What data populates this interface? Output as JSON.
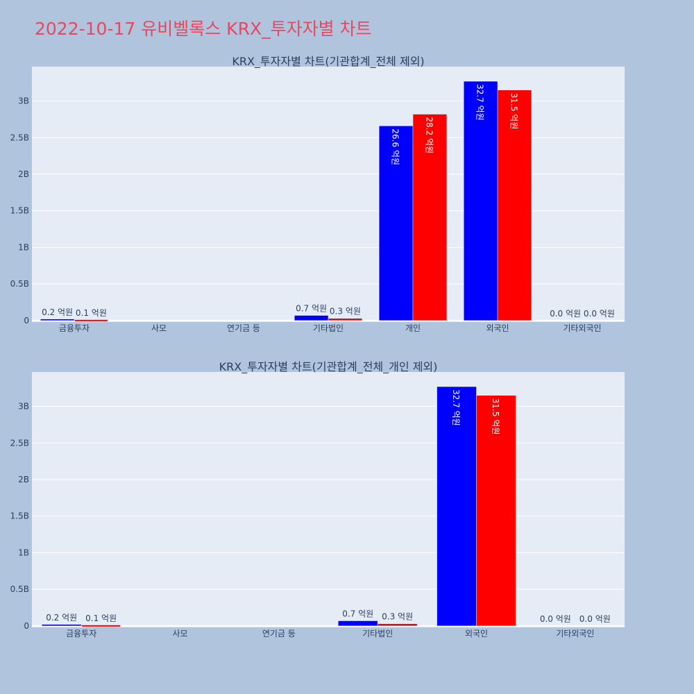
{
  "title": "2022-10-17 유비벨록스 KRX_투자자별 차트",
  "colors": {
    "background": "#b0c4de",
    "plot_bg": "#e5ecf6",
    "title": "#e8475f",
    "text": "#2a3f5f",
    "grid": "#ffffff",
    "series_a": "#0000ff",
    "series_b": "#ff0000"
  },
  "chart_data": [
    {
      "type": "bar",
      "title": "KRX_투자자별 차트(기관합계_전체 제외)",
      "categories": [
        "금융투자",
        "사모",
        "연기금 등",
        "기타법인",
        "개인",
        "외국인",
        "기타외국인"
      ],
      "series": [
        {
          "values": [
            20000000,
            0,
            0,
            70000000,
            2660000000,
            3270000000,
            0
          ],
          "labels": [
            "0.2 억원",
            "",
            "",
            "0.7 억원",
            "26.6 억원",
            "32.7 억원",
            "0.0 억원"
          ]
        },
        {
          "values": [
            10000000,
            0,
            0,
            30000000,
            2820000000,
            3150000000,
            0
          ],
          "labels": [
            "0.1 억원",
            "",
            "",
            "0.3 억원",
            "28.2 억원",
            "31.5 억원",
            "0.0 억원"
          ]
        }
      ],
      "ylim": [
        -20000000,
        3470000000
      ],
      "yticks": [
        0,
        500000000,
        1000000000,
        1500000000,
        2000000000,
        2500000000,
        3000000000
      ],
      "ytick_labels": [
        "0",
        "0.5B",
        "1B",
        "1.5B",
        "2B",
        "2.5B",
        "3B"
      ],
      "grid": true
    },
    {
      "type": "bar",
      "title": "KRX_투자자별 차트(기관합계_전체_개인 제외)",
      "categories": [
        "금융투자",
        "사모",
        "연기금 등",
        "기타법인",
        "외국인",
        "기타외국인"
      ],
      "series": [
        {
          "values": [
            20000000,
            0,
            0,
            70000000,
            3270000000,
            0
          ],
          "labels": [
            "0.2 억원",
            "",
            "",
            "0.7 억원",
            "32.7 억원",
            "0.0 억원"
          ]
        },
        {
          "values": [
            10000000,
            0,
            0,
            30000000,
            3150000000,
            0
          ],
          "labels": [
            "0.1 억원",
            "",
            "",
            "0.3 억원",
            "31.5 억원",
            "0.0 억원"
          ]
        }
      ],
      "ylim": [
        -20000000,
        3470000000
      ],
      "yticks": [
        0,
        500000000,
        1000000000,
        1500000000,
        2000000000,
        2500000000,
        3000000000
      ],
      "ytick_labels": [
        "0",
        "0.5B",
        "1B",
        "1.5B",
        "2B",
        "2.5B",
        "3B"
      ],
      "grid": true
    }
  ]
}
